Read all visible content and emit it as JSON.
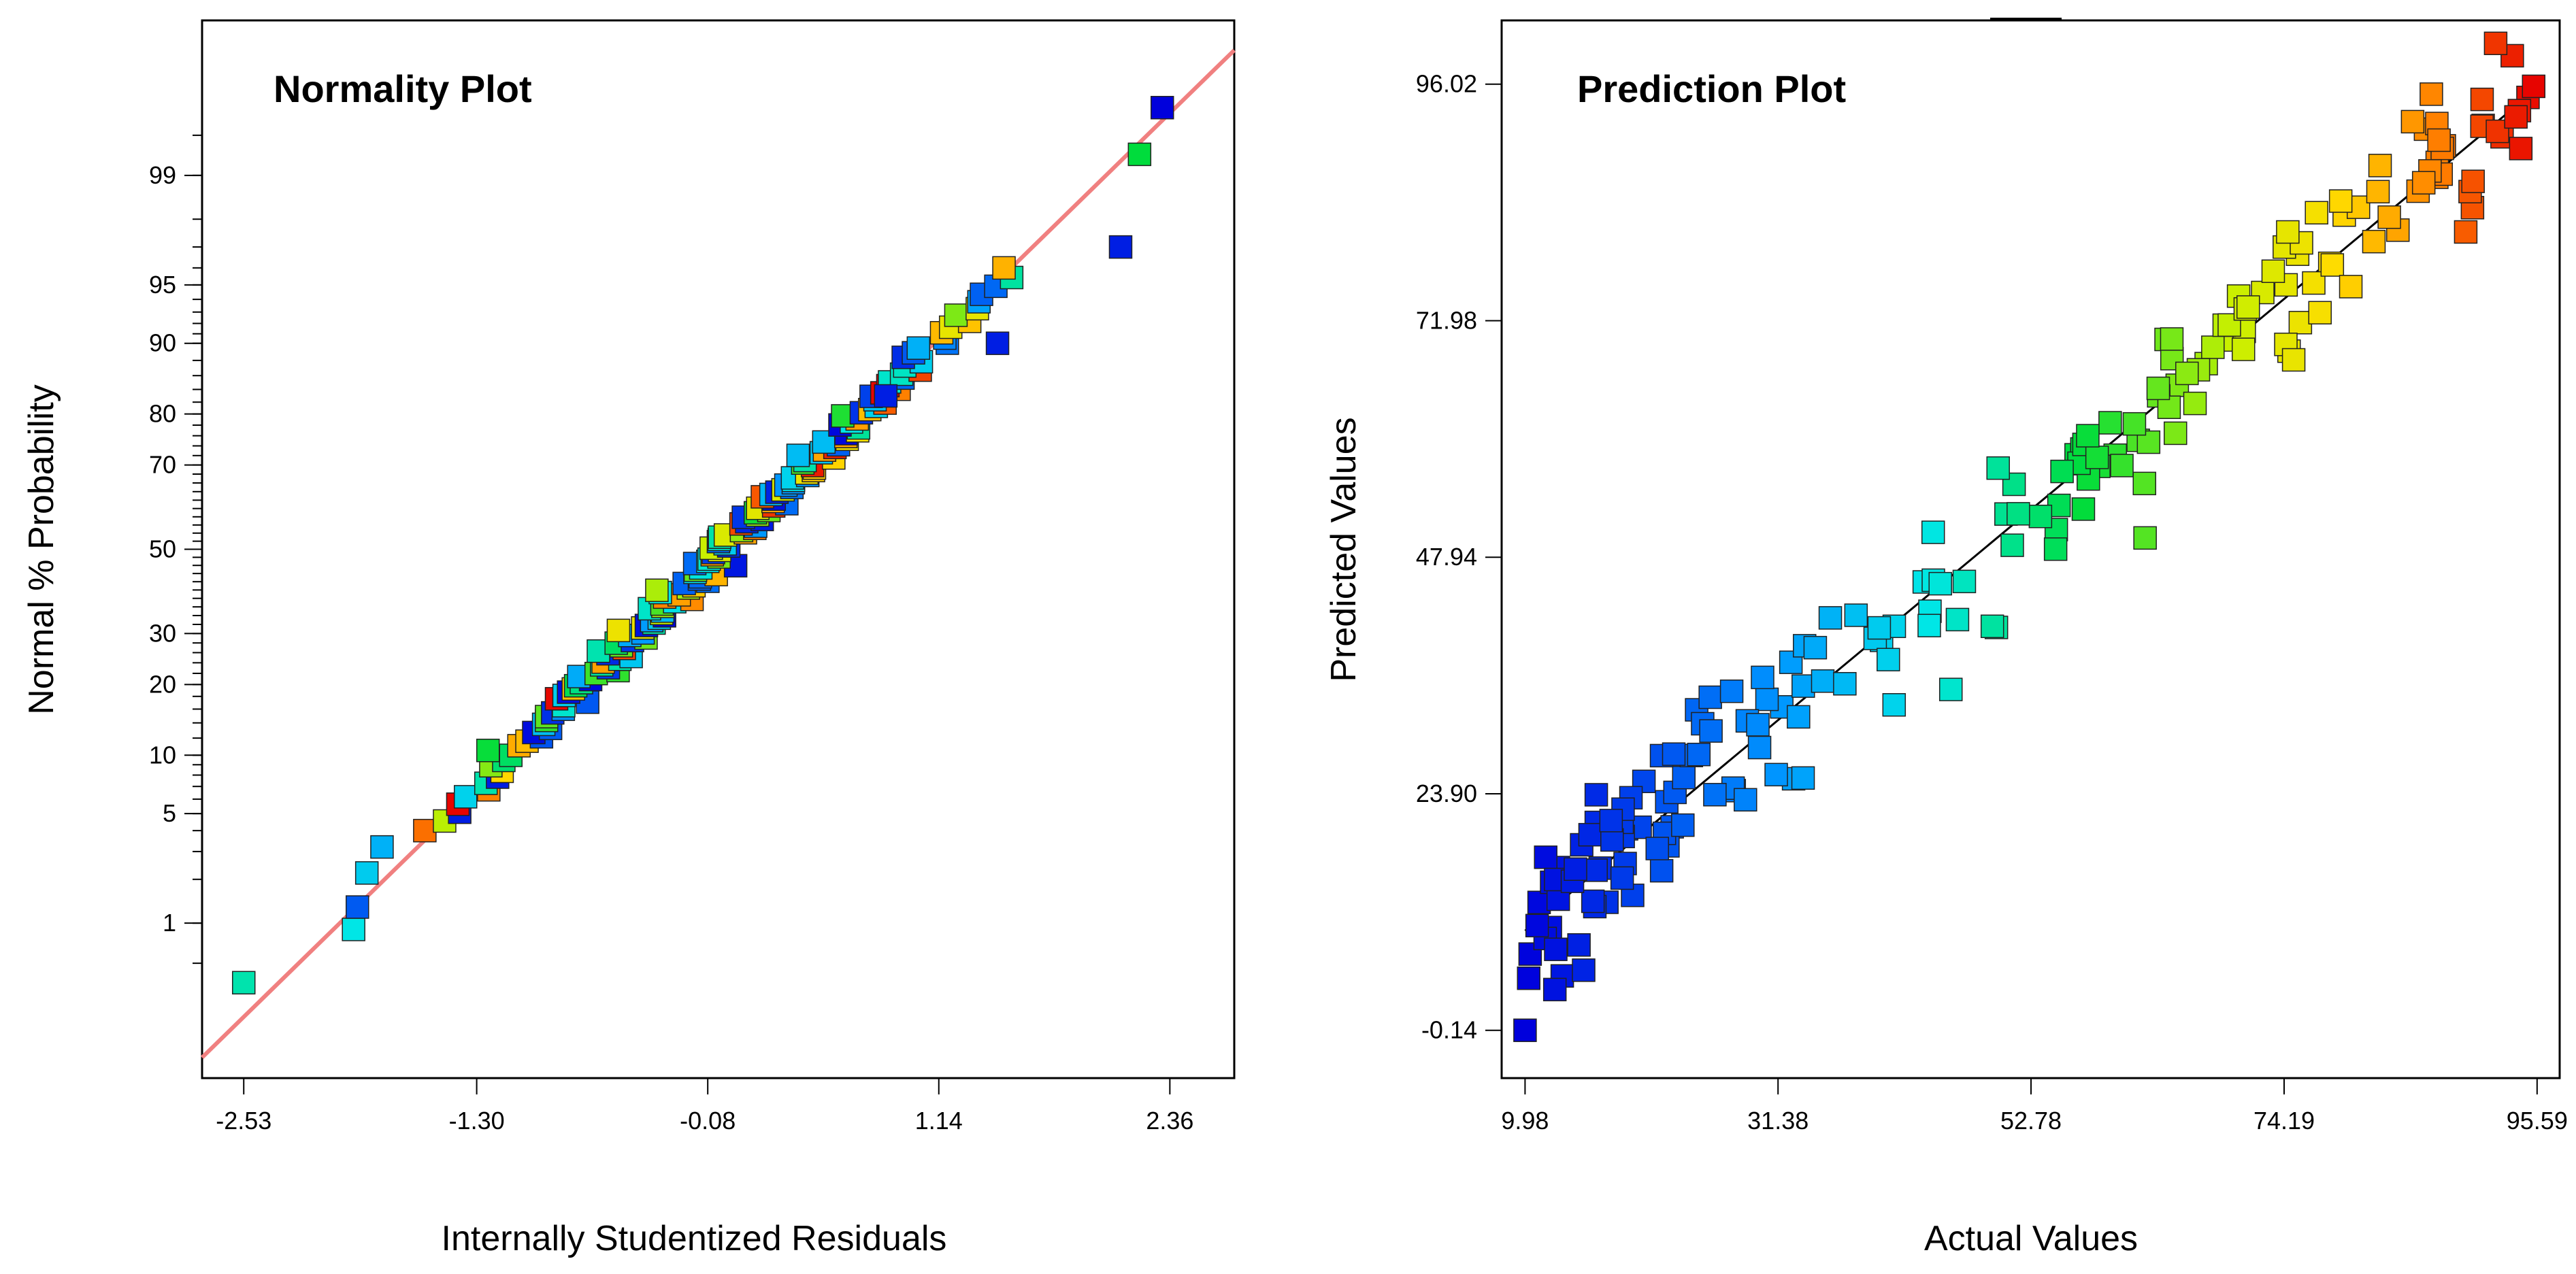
{
  "chart_data": [
    {
      "type": "scatter",
      "title": "Normality Plot",
      "xlabel": "Internally Studentized Residuals",
      "ylabel": "Normal % Probability",
      "xlim": [
        -2.75,
        2.7
      ],
      "x_ticks": [
        -2.53,
        -1.3,
        -0.08,
        1.14,
        2.36
      ],
      "x_tick_labels": [
        "-2.53",
        "-1.30",
        "-0.08",
        "1.14",
        "2.36"
      ],
      "y_scale": "probit",
      "ylim_percent": [
        0.05,
        99.95
      ],
      "y_tick_values": [
        1,
        5,
        10,
        20,
        30,
        50,
        70,
        80,
        90,
        95,
        99
      ],
      "y_tick_labels": [
        "1",
        "5",
        "10",
        "20",
        "30",
        "50",
        "70",
        "80",
        "90",
        "95",
        "99"
      ],
      "reference_line": {
        "color": "#f08080",
        "z_intercept": 0.0,
        "slope": 1.15
      },
      "point_color_scale": "actual value (blue low → red high)",
      "points_sample": [
        {
          "x": -2.53,
          "p": 0.35,
          "c": 0.45
        },
        {
          "x": -1.95,
          "p": 0.9,
          "c": 0.4
        },
        {
          "x": -1.93,
          "p": 1.3,
          "c": 0.15
        },
        {
          "x": -1.88,
          "p": 2.2,
          "c": 0.35
        },
        {
          "x": -1.8,
          "p": 3.2,
          "c": 0.3
        },
        {
          "x": 2.32,
          "p": 99.7,
          "c": 0.0
        },
        {
          "x": 2.2,
          "p": 99.3,
          "c": 0.55
        },
        {
          "x": 2.1,
          "p": 97.0,
          "c": 0.05
        },
        {
          "x": 1.45,
          "p": 90.0,
          "c": 0.05
        },
        {
          "x": 0.86,
          "p": 83.0,
          "c": 0.05
        }
      ]
    },
    {
      "type": "scatter",
      "title": "Prediction Plot",
      "xlabel": "Actual Values",
      "ylabel": "Predicted Values",
      "xlim": [
        8.0,
        97.5
      ],
      "ylim": [
        -5.0,
        102.5
      ],
      "x_ticks": [
        9.98,
        31.38,
        52.78,
        74.19,
        95.59
      ],
      "x_tick_labels": [
        "9.98",
        "31.38",
        "52.78",
        "74.19",
        "95.59"
      ],
      "y_ticks": [
        -0.14,
        23.9,
        47.94,
        71.98,
        96.02
      ],
      "y_tick_labels": [
        "-0.14",
        "23.90",
        "47.94",
        "71.98",
        "96.02"
      ],
      "reference_line": {
        "color": "#000000",
        "from": [
          9.98,
          9.98
        ],
        "to": [
          95.59,
          95.59
        ]
      },
      "point_color_scale": "actual value (blue low → red high)",
      "points_sample": [
        {
          "x": 9.98,
          "y": -0.14
        },
        {
          "x": 11.0,
          "y": 10.5
        },
        {
          "x": 12.5,
          "y": 4.0
        },
        {
          "x": 95.3,
          "y": 95.8
        },
        {
          "x": 86.0,
          "y": 86.0
        },
        {
          "x": 75.0,
          "y": 68.0
        },
        {
          "x": 50.0,
          "y": 57.0
        },
        {
          "x": 33.5,
          "y": 25.5
        },
        {
          "x": 46.0,
          "y": 34.5
        },
        {
          "x": 74.5,
          "y": 81.0
        }
      ]
    }
  ]
}
